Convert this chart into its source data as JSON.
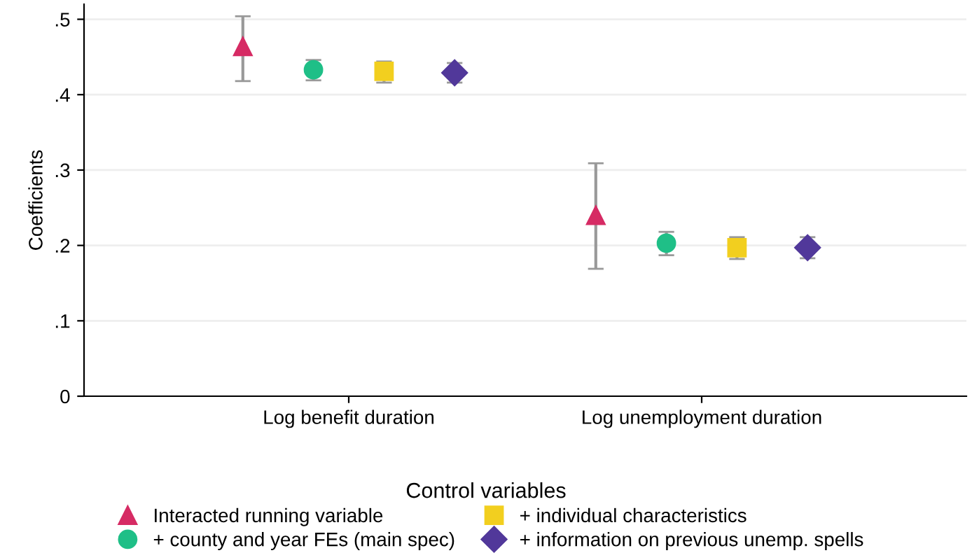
{
  "chart_data": {
    "type": "scatter",
    "ylabel": "Coefficients",
    "legend_title": "Control variables",
    "categories": [
      "Log benefit duration",
      "Log unemployment duration"
    ],
    "series": [
      {
        "name": "Interacted running variable",
        "color": "#d62b64",
        "marker": "triangle",
        "values": [
          0.464,
          0.24
        ],
        "errors": [
          [
            0.418,
            0.504
          ],
          [
            0.169,
            0.309
          ]
        ]
      },
      {
        "name": "+ county and year FEs (main spec)",
        "color": "#1fbf87",
        "marker": "circle",
        "values": [
          0.433,
          0.203
        ],
        "errors": [
          [
            0.419,
            0.446
          ],
          [
            0.187,
            0.218
          ]
        ]
      },
      {
        "name": "+ individual characteristics",
        "color": "#f2cf1f",
        "marker": "square",
        "values": [
          0.431,
          0.197
        ],
        "errors": [
          [
            0.416,
            0.444
          ],
          [
            0.182,
            0.211
          ]
        ]
      },
      {
        "name": "+ information on previous unemp. spells",
        "color": "#51389a",
        "marker": "diamond",
        "values": [
          0.429,
          0.197
        ],
        "errors": [
          [
            0.416,
            0.442
          ],
          [
            0.183,
            0.211
          ]
        ]
      }
    ],
    "ylim": [
      0,
      0.52
    ],
    "yticks": [
      {
        "value": 0,
        "label": "0"
      },
      {
        "value": 0.1,
        "label": ".1"
      },
      {
        "value": 0.2,
        "label": ".2"
      },
      {
        "value": 0.3,
        "label": ".3"
      },
      {
        "value": 0.4,
        "label": ".4"
      },
      {
        "value": 0.5,
        "label": ".5"
      }
    ],
    "grid": "y",
    "legend": "bottom"
  }
}
